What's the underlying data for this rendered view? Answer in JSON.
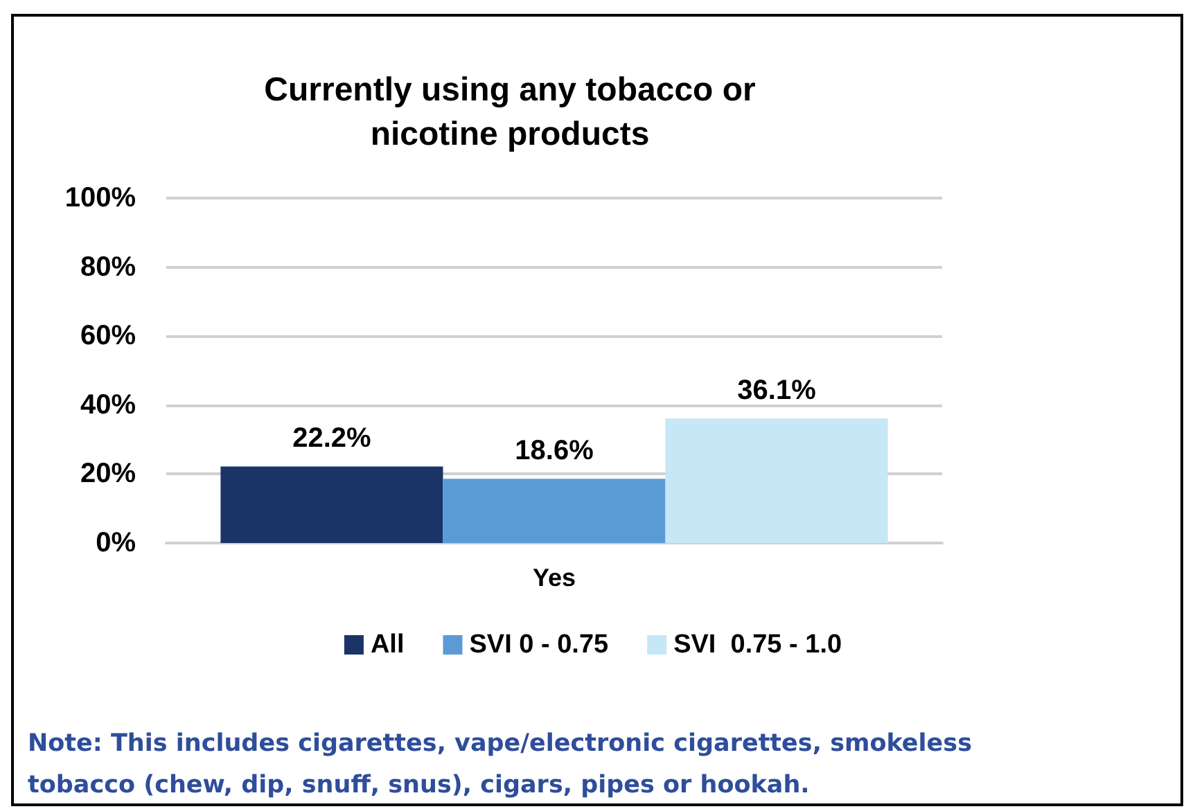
{
  "chart_data": {
    "type": "bar",
    "title": "Currently using any tobacco or\nnicotine products",
    "categories": [
      "Yes"
    ],
    "series": [
      {
        "name": "All",
        "color": "#1b3468",
        "values": [
          22.2
        ],
        "value_labels": [
          "22.2%"
        ]
      },
      {
        "name": "SVI 0 - 0.75",
        "color": "#5b9bd5",
        "values": [
          18.6
        ],
        "value_labels": [
          "18.6%"
        ]
      },
      {
        "name": "SVI  0.75 - 1.0",
        "color": "#c5e7f6",
        "values": [
          36.1
        ],
        "value_labels": [
          "36.1%"
        ]
      }
    ],
    "ylim": [
      0,
      100
    ],
    "yticks": [
      {
        "value": 0,
        "label": "0%"
      },
      {
        "value": 20,
        "label": "20%"
      },
      {
        "value": 40,
        "label": "40%"
      },
      {
        "value": 60,
        "label": "60%"
      },
      {
        "value": 80,
        "label": "80%"
      },
      {
        "value": 100,
        "label": "100%"
      }
    ],
    "grid": "y",
    "legend": "bottom",
    "annotations": [
      "Note: This includes cigarettes, vape/electronic cigarettes, smokeless\ntobacco (chew, dip, snuff, snus), cigars, pipes or hookah."
    ]
  }
}
